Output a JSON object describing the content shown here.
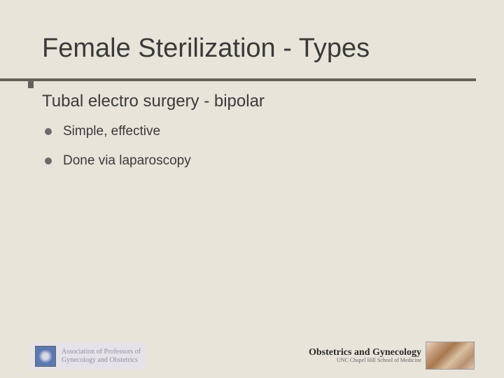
{
  "title": "Female Sterilization - Types",
  "subheading": "Tubal electro surgery - bipolar",
  "bullets": [
    "Simple, effective",
    "Done via laparoscopy"
  ],
  "footer": {
    "left": {
      "line1": "Association of Professors of",
      "line2": "Gynecology and Obstetrics"
    },
    "right": {
      "dept": "Obstetrics and Gynecology",
      "sub": "UNC Chapel Hill School of Medicine"
    }
  },
  "colors": {
    "background": "#e8e4da",
    "text": "#3a3a3a",
    "rule": "#66605a",
    "bullet": "#6b6b6b"
  }
}
